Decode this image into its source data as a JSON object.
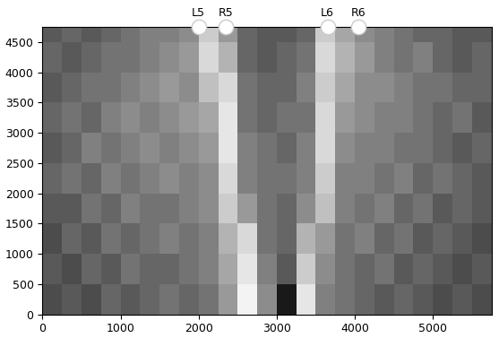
{
  "chart_data": {
    "type": "heatmap",
    "color": "gray",
    "x_edges": [
      0,
      250,
      500,
      750,
      1000,
      1250,
      1500,
      1750,
      2000,
      2250,
      2500,
      2750,
      3000,
      3250,
      3500,
      3750,
      4000,
      4250,
      4500,
      4750,
      5000,
      5250,
      5500,
      5750
    ],
    "y_edges": [
      0,
      500,
      1000,
      1500,
      2000,
      2500,
      3000,
      3500,
      4000,
      4500,
      4750
    ],
    "cells": [
      [
        0.3,
        0.35,
        0.3,
        0.4,
        0.35,
        0.4,
        0.45,
        0.4,
        0.45,
        0.6,
        0.95,
        0.55,
        0.1,
        0.9,
        0.5,
        0.45,
        0.4,
        0.35,
        0.4,
        0.35,
        0.3,
        0.35,
        0.3
      ],
      [
        0.35,
        0.3,
        0.4,
        0.35,
        0.45,
        0.4,
        0.4,
        0.45,
        0.5,
        0.65,
        0.9,
        0.5,
        0.35,
        0.8,
        0.55,
        0.45,
        0.4,
        0.45,
        0.35,
        0.4,
        0.35,
        0.3,
        0.35
      ],
      [
        0.3,
        0.4,
        0.35,
        0.45,
        0.4,
        0.45,
        0.5,
        0.45,
        0.5,
        0.7,
        0.85,
        0.45,
        0.4,
        0.7,
        0.6,
        0.45,
        0.5,
        0.4,
        0.45,
        0.35,
        0.4,
        0.35,
        0.3
      ],
      [
        0.35,
        0.35,
        0.45,
        0.4,
        0.5,
        0.45,
        0.45,
        0.5,
        0.55,
        0.8,
        0.6,
        0.45,
        0.4,
        0.55,
        0.75,
        0.5,
        0.45,
        0.5,
        0.4,
        0.45,
        0.35,
        0.4,
        0.35
      ],
      [
        0.4,
        0.45,
        0.4,
        0.5,
        0.45,
        0.5,
        0.55,
        0.5,
        0.55,
        0.85,
        0.5,
        0.45,
        0.45,
        0.5,
        0.8,
        0.5,
        0.5,
        0.45,
        0.5,
        0.4,
        0.45,
        0.4,
        0.35
      ],
      [
        0.35,
        0.4,
        0.5,
        0.45,
        0.5,
        0.55,
        0.5,
        0.55,
        0.6,
        0.9,
        0.5,
        0.45,
        0.4,
        0.5,
        0.85,
        0.55,
        0.5,
        0.5,
        0.45,
        0.45,
        0.4,
        0.35,
        0.4
      ],
      [
        0.4,
        0.45,
        0.4,
        0.5,
        0.55,
        0.5,
        0.55,
        0.6,
        0.65,
        0.9,
        0.45,
        0.4,
        0.45,
        0.45,
        0.85,
        0.6,
        0.55,
        0.5,
        0.5,
        0.45,
        0.4,
        0.45,
        0.35
      ],
      [
        0.35,
        0.4,
        0.45,
        0.45,
        0.5,
        0.55,
        0.6,
        0.55,
        0.75,
        0.85,
        0.45,
        0.4,
        0.4,
        0.5,
        0.8,
        0.65,
        0.55,
        0.55,
        0.5,
        0.45,
        0.45,
        0.4,
        0.4
      ],
      [
        0.4,
        0.35,
        0.4,
        0.45,
        0.45,
        0.5,
        0.55,
        0.6,
        0.85,
        0.7,
        0.4,
        0.35,
        0.4,
        0.45,
        0.85,
        0.7,
        0.6,
        0.5,
        0.45,
        0.5,
        0.4,
        0.35,
        0.4
      ],
      [
        0.35,
        0.4,
        0.35,
        0.4,
        0.45,
        0.5,
        0.5,
        0.55,
        0.8,
        0.6,
        0.4,
        0.35,
        0.35,
        0.4,
        0.8,
        0.65,
        0.55,
        0.5,
        0.45,
        0.4,
        0.4,
        0.35,
        0.35
      ]
    ],
    "annotations": [
      {
        "text": "L5",
        "x": 2000
      },
      {
        "text": "R5",
        "x": 2350
      },
      {
        "text": "L6",
        "x": 3650
      },
      {
        "text": "R6",
        "x": 4050
      }
    ],
    "xlim": [
      0,
      5750
    ],
    "ylim": [
      0,
      4750
    ],
    "xticks": [
      0,
      1000,
      2000,
      3000,
      4000,
      5000
    ],
    "yticks": [
      0,
      500,
      1000,
      1500,
      2000,
      2500,
      3000,
      3500,
      4000,
      4500
    ],
    "grid": false
  }
}
